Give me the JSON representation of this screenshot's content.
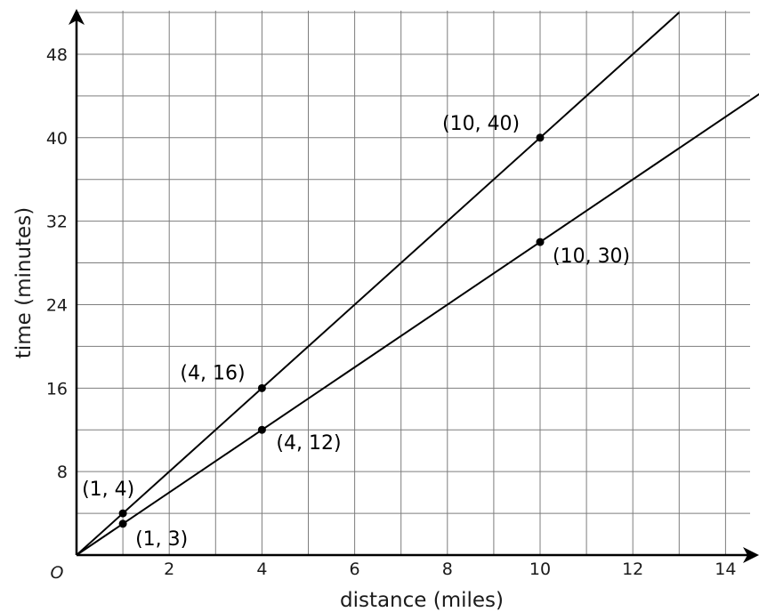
{
  "chart_data": {
    "type": "line",
    "xlabel": "distance (miles)",
    "ylabel": "time (minutes)",
    "origin_label": "O",
    "xlim": [
      0,
      14.75
    ],
    "ylim": [
      0,
      52
    ],
    "x_tick_labels": [
      {
        "value": 2,
        "label": "2"
      },
      {
        "value": 4,
        "label": "4"
      },
      {
        "value": 6,
        "label": "6"
      },
      {
        "value": 8,
        "label": "8"
      },
      {
        "value": 10,
        "label": "10"
      },
      {
        "value": 12,
        "label": "12"
      },
      {
        "value": 14,
        "label": "14"
      }
    ],
    "y_tick_labels": [
      {
        "value": 8,
        "label": "8"
      },
      {
        "value": 16,
        "label": "16"
      },
      {
        "value": 24,
        "label": "24"
      },
      {
        "value": 32,
        "label": "32"
      },
      {
        "value": 40,
        "label": "40"
      },
      {
        "value": 48,
        "label": "48"
      }
    ],
    "grid": {
      "x_step": 1,
      "y_step": 4
    },
    "series": [
      {
        "slope": 4,
        "points": [
          {
            "x": 1,
            "y": 4,
            "label": "(1, 4)"
          },
          {
            "x": 4,
            "y": 16,
            "label": "(4, 16)"
          },
          {
            "x": 10,
            "y": 40,
            "label": "(10, 40)"
          }
        ]
      },
      {
        "slope": 3,
        "points": [
          {
            "x": 1,
            "y": 3,
            "label": "(1, 3)"
          },
          {
            "x": 4,
            "y": 12,
            "label": "(4, 12)"
          },
          {
            "x": 10,
            "y": 30,
            "label": "(10, 30)"
          }
        ]
      }
    ]
  }
}
